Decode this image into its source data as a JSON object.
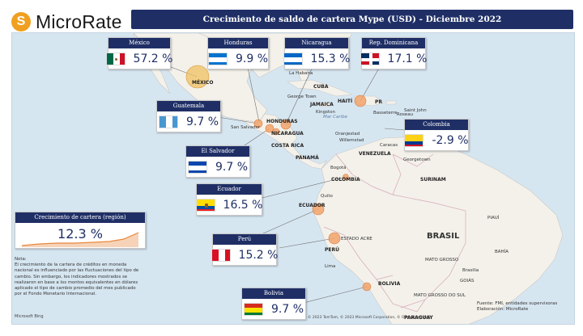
{
  "brand": {
    "logo_letter": "S",
    "name": "MicroRate"
  },
  "title": "Crecimiento de saldo de cartera Mype (USD) - Diciembre 2022",
  "countries": [
    {
      "key": "mexico",
      "name": "México",
      "value": "57.2 %",
      "flag": "mexico-flag-icon"
    },
    {
      "key": "honduras",
      "name": "Honduras",
      "value": "9.9 %",
      "flag": "honduras-flag-icon"
    },
    {
      "key": "nicaragua",
      "name": "Nicaragua",
      "value": "15.3 %",
      "flag": "nicaragua-flag-icon"
    },
    {
      "key": "dominicana",
      "name": "Rep. Dominicana",
      "value": "17.1 %",
      "flag": "dominican-republic-flag-icon"
    },
    {
      "key": "guatemala",
      "name": "Guatemala",
      "value": "9.7 %",
      "flag": "guatemala-flag-icon"
    },
    {
      "key": "colombia",
      "name": "Colombia",
      "value": "-2.9 %",
      "flag": "colombia-flag-icon"
    },
    {
      "key": "salvador",
      "name": "El Salvador",
      "value": "9.7 %",
      "flag": "el-salvador-flag-icon"
    },
    {
      "key": "ecuador",
      "name": "Ecuador",
      "value": "16.5 %",
      "flag": "ecuador-flag-icon"
    },
    {
      "key": "peru",
      "name": "Perú",
      "value": "15.2 %",
      "flag": "peru-flag-icon"
    },
    {
      "key": "bolivia",
      "name": "Bolivia",
      "value": "9.7 %",
      "flag": "bolivia-flag-icon"
    }
  ],
  "region": {
    "title": "Crecimiento de cartera (región)",
    "value": "12.3 %"
  },
  "note": {
    "title": "Nota:",
    "text": "El crecimiento de la cartera de créditos en moneda nacional es influenciado por las fluctuaciones del tipo de cambio. Sin embargo, los indicadores mostrados se realizaron en base a los montos equivalentes en dólares aplicado el tipo de cambio promedio del mes publicado por el Fondo Monetario Internacional."
  },
  "source": {
    "line1": "Fuente: FMI, entidades supervisoras",
    "line2": "Elaboración: MicroRate"
  },
  "copyright": "© 2023 TomTom, © 2023 Microsoft Corporation, © OpenStreetMap",
  "ms_logo_text": "Microsoft Bing",
  "map_labels": {
    "mexico": "MÉXICO",
    "habana": "La Habana",
    "cuba": "CUBA",
    "georgetown_cay": "George Town",
    "jamaica": "JAMAICA",
    "kingston": "Kingston",
    "haiti": "HAITÍ",
    "pr": "PR",
    "basseterre": "Basseterre",
    "roseau": "Roseau",
    "saint_john": "Saint John",
    "mar_caribe": "Mar Caribe",
    "oranjestad": "Oranjestad",
    "willemstad": "Willemstad",
    "caracas": "Caracas",
    "venezuela": "VENEZUELA",
    "honduras": "HONDURAS",
    "nicaragua": "NICARAGUA",
    "san_salvador": "San Salvador",
    "costa_rica": "COSTA RICA",
    "panama": "PANAMÁ",
    "bogota": "Bogotá",
    "colombia": "COLOMBIA",
    "georgetown": "Georgetown",
    "surinam": "SURINAM",
    "quito": "Quito",
    "ecuador": "ECUADOR",
    "peru": "PERÚ",
    "lima": "Lima",
    "brasil": "BRASIL",
    "bolivia": "BOLIVIA",
    "paraguay": "PARAGUAY",
    "brasilia": "Brasilia",
    "mato_grosso": "MATO GROSSO",
    "estado_acre": "ESTADO ACRE",
    "goias": "GOIÁS",
    "bahia": "BAHÍA",
    "piaui": "PIAUÍ",
    "mato_grosso_sul": "MATO GROSSO DO SUL"
  },
  "colors": {
    "header": "#1f2f66",
    "bubble": "#f2a36b",
    "mexico_bubble": "#f0c060",
    "water": "#d6e6f1",
    "land": "#f3f1ea"
  }
}
